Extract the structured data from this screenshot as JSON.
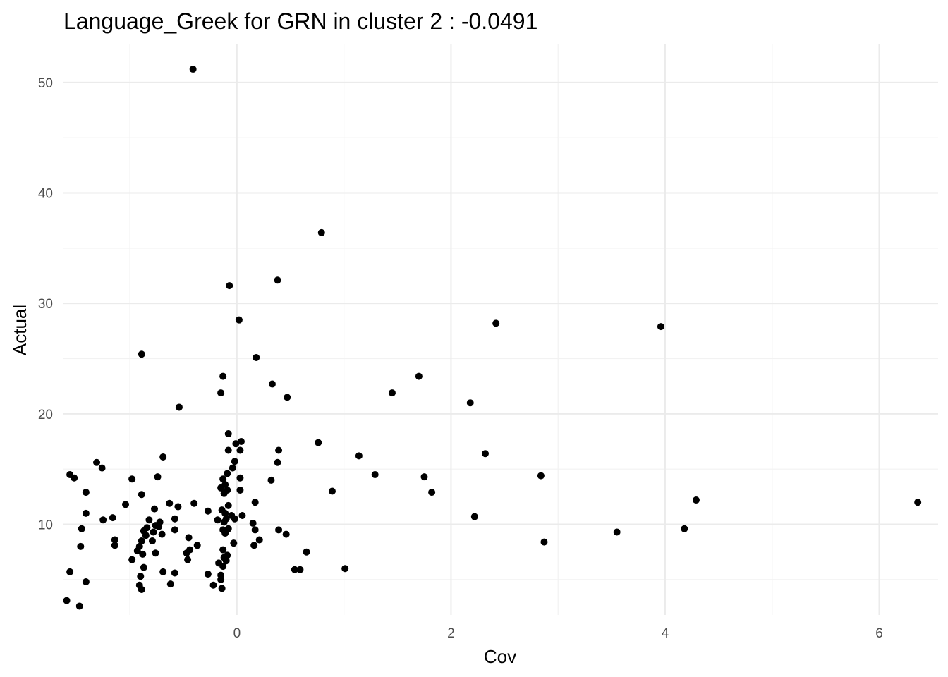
{
  "chart_data": {
    "type": "scatter",
    "title": "Language_Greek for GRN in cluster 2 : -0.0491",
    "xlabel": "Cov",
    "ylabel": "Actual",
    "xlim": [
      -1.62,
      6.55
    ],
    "ylim": [
      1.8,
      53.5
    ],
    "x_ticks": [
      0,
      2,
      4,
      6
    ],
    "y_ticks": [
      10,
      20,
      30,
      40,
      50
    ],
    "x_minor_ticks": [
      -1,
      1,
      3,
      5
    ],
    "y_minor_ticks": [
      5,
      15,
      25,
      35,
      45
    ],
    "grid": true,
    "point_color": "#000000",
    "points": [
      [
        -0.41,
        51.2
      ],
      [
        0.79,
        36.4
      ],
      [
        0.38,
        32.1
      ],
      [
        -0.07,
        31.6
      ],
      [
        0.02,
        28.5
      ],
      [
        2.42,
        28.2
      ],
      [
        3.96,
        27.9
      ],
      [
        -0.89,
        25.4
      ],
      [
        0.18,
        25.1
      ],
      [
        -0.13,
        23.4
      ],
      [
        1.7,
        23.4
      ],
      [
        0.33,
        22.7
      ],
      [
        -0.15,
        21.9
      ],
      [
        1.45,
        21.9
      ],
      [
        0.47,
        21.5
      ],
      [
        2.18,
        21.0
      ],
      [
        -0.54,
        20.6
      ],
      [
        -0.08,
        18.2
      ],
      [
        0.04,
        17.5
      ],
      [
        -0.01,
        17.3
      ],
      [
        0.76,
        17.4
      ],
      [
        -0.08,
        16.7
      ],
      [
        0.03,
        16.7
      ],
      [
        0.39,
        16.7
      ],
      [
        2.32,
        16.4
      ],
      [
        1.14,
        16.2
      ],
      [
        -0.69,
        16.1
      ],
      [
        -0.02,
        15.7
      ],
      [
        -1.31,
        15.6
      ],
      [
        0.38,
        15.6
      ],
      [
        -1.26,
        15.1
      ],
      [
        -0.04,
        15.1
      ],
      [
        -0.09,
        14.6
      ],
      [
        1.29,
        14.5
      ],
      [
        -1.56,
        14.5
      ],
      [
        -1.52,
        14.2
      ],
      [
        -0.98,
        14.1
      ],
      [
        -0.74,
        14.3
      ],
      [
        -0.13,
        14.1
      ],
      [
        0.03,
        14.2
      ],
      [
        -0.11,
        13.6
      ],
      [
        1.75,
        14.3
      ],
      [
        2.84,
        14.4
      ],
      [
        0.32,
        14.0
      ],
      [
        -0.15,
        13.3
      ],
      [
        -0.09,
        13.1
      ],
      [
        -0.12,
        12.8
      ],
      [
        0.03,
        13.1
      ],
      [
        -1.41,
        12.9
      ],
      [
        -0.89,
        12.7
      ],
      [
        0.89,
        13.0
      ],
      [
        1.82,
        12.9
      ],
      [
        -0.63,
        11.9
      ],
      [
        -0.4,
        11.9
      ],
      [
        0.17,
        12.0
      ],
      [
        4.29,
        12.2
      ],
      [
        6.36,
        12.0
      ],
      [
        -1.04,
        11.8
      ],
      [
        -0.55,
        11.6
      ],
      [
        -0.08,
        11.7
      ],
      [
        -0.77,
        11.4
      ],
      [
        -0.27,
        11.2
      ],
      [
        -0.14,
        11.3
      ],
      [
        -0.11,
        11.0
      ],
      [
        -1.41,
        11.0
      ],
      [
        -0.18,
        10.4
      ],
      [
        -0.1,
        10.5
      ],
      [
        -0.05,
        10.8
      ],
      [
        -0.02,
        10.5
      ],
      [
        0.05,
        10.8
      ],
      [
        -1.16,
        10.6
      ],
      [
        -1.25,
        10.4
      ],
      [
        -0.58,
        10.5
      ],
      [
        -0.72,
        10.2
      ],
      [
        -0.82,
        10.4
      ],
      [
        -0.76,
        9.9
      ],
      [
        -0.12,
        10.2
      ],
      [
        2.22,
        10.7
      ],
      [
        0.15,
        10.1
      ],
      [
        -0.73,
        9.8
      ],
      [
        -0.08,
        9.6
      ],
      [
        -1.45,
        9.6
      ],
      [
        -0.87,
        9.4
      ],
      [
        -0.84,
        9.7
      ],
      [
        -0.78,
        9.3
      ],
      [
        -0.58,
        9.5
      ],
      [
        -0.13,
        9.5
      ],
      [
        0.17,
        9.5
      ],
      [
        0.39,
        9.5
      ],
      [
        4.18,
        9.6
      ],
      [
        -0.7,
        9.1
      ],
      [
        -0.85,
        9.0
      ],
      [
        -0.45,
        8.8
      ],
      [
        -0.11,
        9.2
      ],
      [
        0.46,
        9.1
      ],
      [
        3.55,
        9.3
      ],
      [
        -1.14,
        8.6
      ],
      [
        -0.79,
        8.5
      ],
      [
        -0.89,
        8.5
      ],
      [
        0.21,
        8.6
      ],
      [
        2.87,
        8.4
      ],
      [
        -0.03,
        8.3
      ],
      [
        -1.14,
        8.1
      ],
      [
        -1.46,
        8.0
      ],
      [
        -0.91,
        8.0
      ],
      [
        -0.37,
        8.1
      ],
      [
        0.16,
        8.1
      ],
      [
        -0.44,
        7.7
      ],
      [
        -0.13,
        7.7
      ],
      [
        -0.93,
        7.6
      ],
      [
        -0.76,
        7.4
      ],
      [
        -0.47,
        7.4
      ],
      [
        -0.09,
        7.2
      ],
      [
        -0.12,
        7.0
      ],
      [
        0.65,
        7.5
      ],
      [
        -0.88,
        7.3
      ],
      [
        -0.46,
        6.8
      ],
      [
        -0.98,
        6.8
      ],
      [
        -0.1,
        6.7
      ],
      [
        -0.17,
        6.5
      ],
      [
        -0.13,
        6.2
      ],
      [
        -0.87,
        6.1
      ],
      [
        0.54,
        5.9
      ],
      [
        0.59,
        5.9
      ],
      [
        1.01,
        6.0
      ],
      [
        -1.56,
        5.7
      ],
      [
        -0.69,
        5.7
      ],
      [
        -0.58,
        5.6
      ],
      [
        -0.27,
        5.5
      ],
      [
        -0.15,
        5.4
      ],
      [
        -0.9,
        5.3
      ],
      [
        -0.15,
        5.0
      ],
      [
        -1.41,
        4.8
      ],
      [
        -0.62,
        4.6
      ],
      [
        -0.22,
        4.5
      ],
      [
        -0.91,
        4.5
      ],
      [
        -0.89,
        4.1
      ],
      [
        -0.14,
        4.2
      ],
      [
        -1.59,
        3.1
      ],
      [
        -1.47,
        2.6
      ]
    ]
  }
}
